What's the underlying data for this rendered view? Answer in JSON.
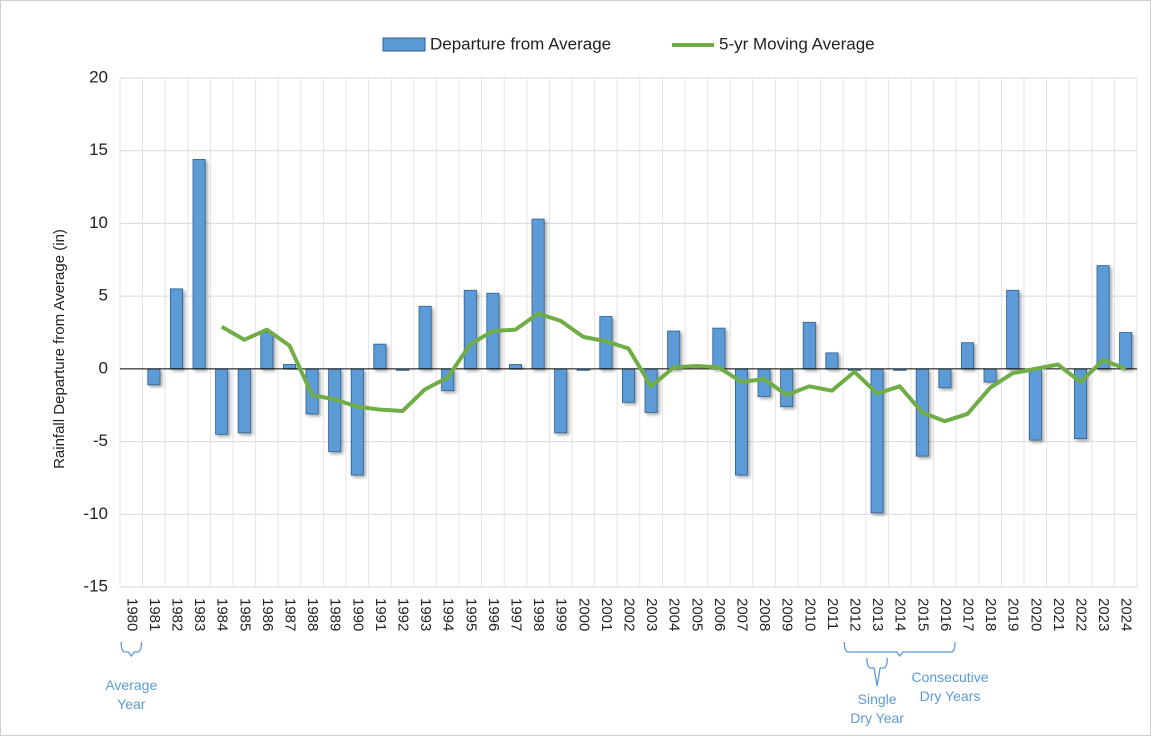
{
  "chart_data": {
    "type": "bar_line",
    "y_label": "Rainfall Departure from Average (in)",
    "categories": [
      "1980",
      "1981",
      "1982",
      "1983",
      "1984",
      "1985",
      "1986",
      "1987",
      "1988",
      "1989",
      "1990",
      "1991",
      "1992",
      "1993",
      "1994",
      "1995",
      "1996",
      "1997",
      "1998",
      "1999",
      "2000",
      "2001",
      "2002",
      "2003",
      "2004",
      "2005",
      "2006",
      "2007",
      "2008",
      "2009",
      "2010",
      "2011",
      "2012",
      "2013",
      "2014",
      "2015",
      "2016",
      "2017",
      "2018",
      "2019",
      "2020",
      "2021",
      "2022",
      "2023",
      "2024"
    ],
    "series": [
      {
        "name": "Departure from Average",
        "type": "bar",
        "color": "#5b9bd5",
        "values": [
          0,
          -1.1,
          5.5,
          14.4,
          -4.5,
          -4.4,
          2.5,
          0.3,
          -3.1,
          -5.7,
          -7.3,
          1.7,
          -0.1,
          4.3,
          -1.5,
          5.4,
          5.2,
          0.3,
          10.3,
          -4.4,
          -0.1,
          3.6,
          -2.3,
          -3.0,
          2.6,
          0.0,
          2.8,
          -7.3,
          -1.9,
          -2.6,
          3.2,
          1.1,
          -0.1,
          -9.9,
          -0.1,
          -6.0,
          -1.3,
          1.8,
          -0.9,
          5.4,
          -4.9,
          0.0,
          -4.8,
          7.1,
          2.5
        ]
      },
      {
        "name": "5-yr Moving Average",
        "type": "line",
        "color": "#70ad47",
        "values": [
          null,
          null,
          null,
          null,
          2.9,
          2.0,
          2.7,
          1.6,
          -1.8,
          -2.1,
          -2.6,
          -2.8,
          -2.9,
          -1.4,
          -0.6,
          1.7,
          2.6,
          2.7,
          3.8,
          3.3,
          2.2,
          1.9,
          1.4,
          -1.2,
          0.1,
          0.2,
          0.1,
          -0.9,
          -0.7,
          -1.8,
          -1.2,
          -1.5,
          -0.2,
          -1.7,
          -1.2,
          -3.0,
          -3.6,
          -3.1,
          -1.3,
          -0.3,
          0.0,
          0.3,
          -0.9,
          0.6,
          0.0
        ]
      }
    ],
    "ylim": [
      -15,
      20
    ],
    "yticks": [
      -15,
      -10,
      -5,
      0,
      5,
      10,
      15,
      20
    ],
    "grid": true,
    "legend": "top",
    "annotations": [
      {
        "text": "Average Year",
        "from": "1980",
        "to": "1980"
      },
      {
        "text": "Single Dry Year",
        "from": "2013",
        "to": "2013"
      },
      {
        "text": "Consecutive Dry Years",
        "from": "2012",
        "to": "2016"
      }
    ]
  }
}
